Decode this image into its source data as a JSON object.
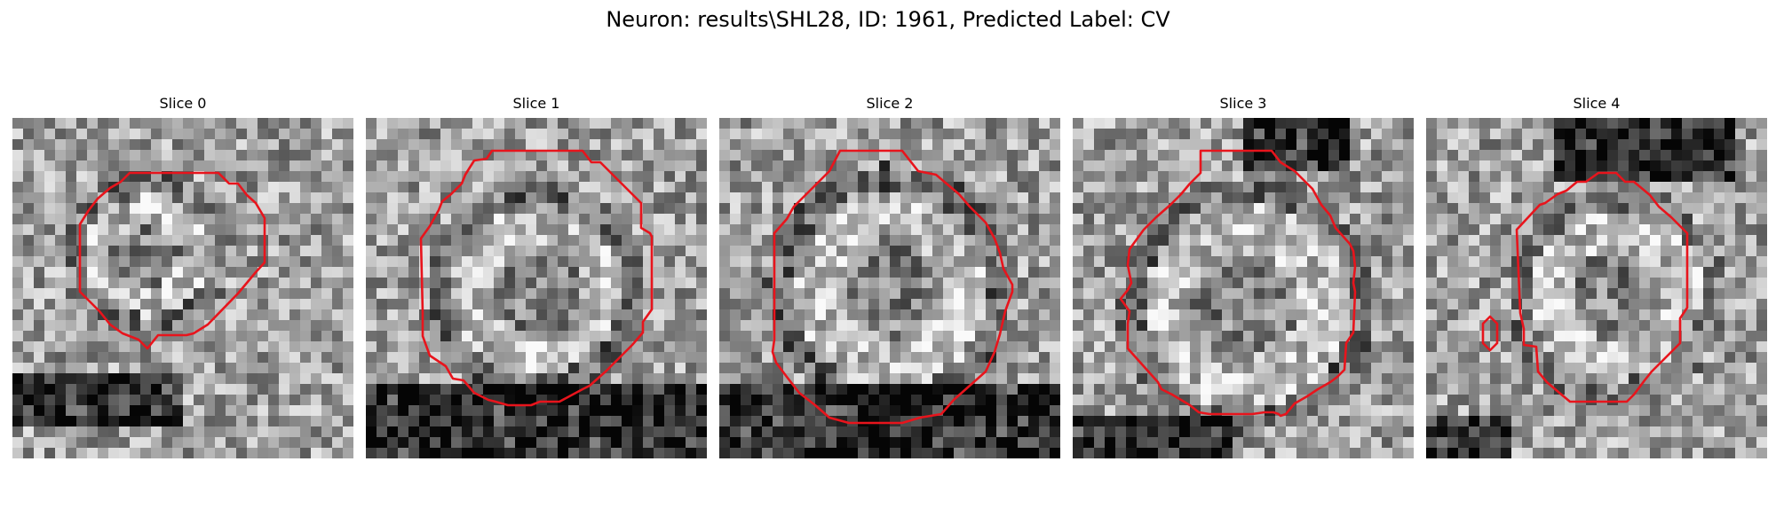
{
  "figure": {
    "title": "Neuron: results\\SHL28, ID: 1961, Predicted Label: CV",
    "colormap": "grayscale",
    "contour_color": "#e8141c",
    "panels": [
      {
        "title": "Slice 0"
      },
      {
        "title": "Slice 1"
      },
      {
        "title": "Slice 2"
      },
      {
        "title": "Slice 3"
      },
      {
        "title": "Slice 4"
      }
    ]
  }
}
